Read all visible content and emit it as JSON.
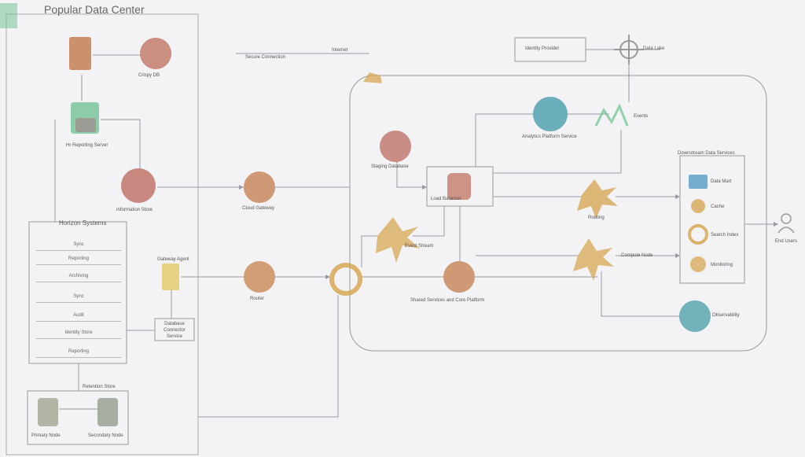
{
  "title": "Popular Data Center",
  "onprem": {
    "top_right_label": "Crispy DB",
    "mid_label": "Hr Reporting Server",
    "store_label": "Information Store",
    "list_header": "Horizon Systems",
    "list_items": [
      "Sync",
      "Reporting",
      "Archiving",
      "Sync",
      "Audit",
      "Identity Store",
      "Reporting"
    ],
    "bottom_header": "Retention Store",
    "bottom_left_label": "Primary Node",
    "bottom_right_label": "Secondary Node",
    "connector_label": "Gateway Agent",
    "connector_side_label": "Database Connector Service"
  },
  "middle": {
    "top_label": "Secure Connection",
    "top_label2": "Internet",
    "upper_node_label": "Cloud Gateway",
    "lower_node_label": "Router"
  },
  "cloud": {
    "top_box_label": "Identity Provider",
    "cloud_node_label": "Analytics Platform Service",
    "left_node_label": "Staging Database",
    "center_label": "Load Balancer",
    "right_label": "Routing",
    "kinesis_label": "Event Stream",
    "bottom_node_label": "Shared Services and Core Platform",
    "wave_label": "Events",
    "right_hub_label": "Data Lake",
    "panel_header": "Downstream Data Services",
    "panel_items": [
      "Data Mart",
      "Cache",
      "Search Index",
      "Monitoring"
    ],
    "monitor_label": "Observability",
    "user_label": "End Users",
    "lambda_label": "Compute Node"
  },
  "colors": {
    "line": "#9a9aa8",
    "database": "#d4a24a",
    "compute": "#b2567a",
    "cloud_blue": "#3f8fbf",
    "storage": "#6bbf8d"
  }
}
